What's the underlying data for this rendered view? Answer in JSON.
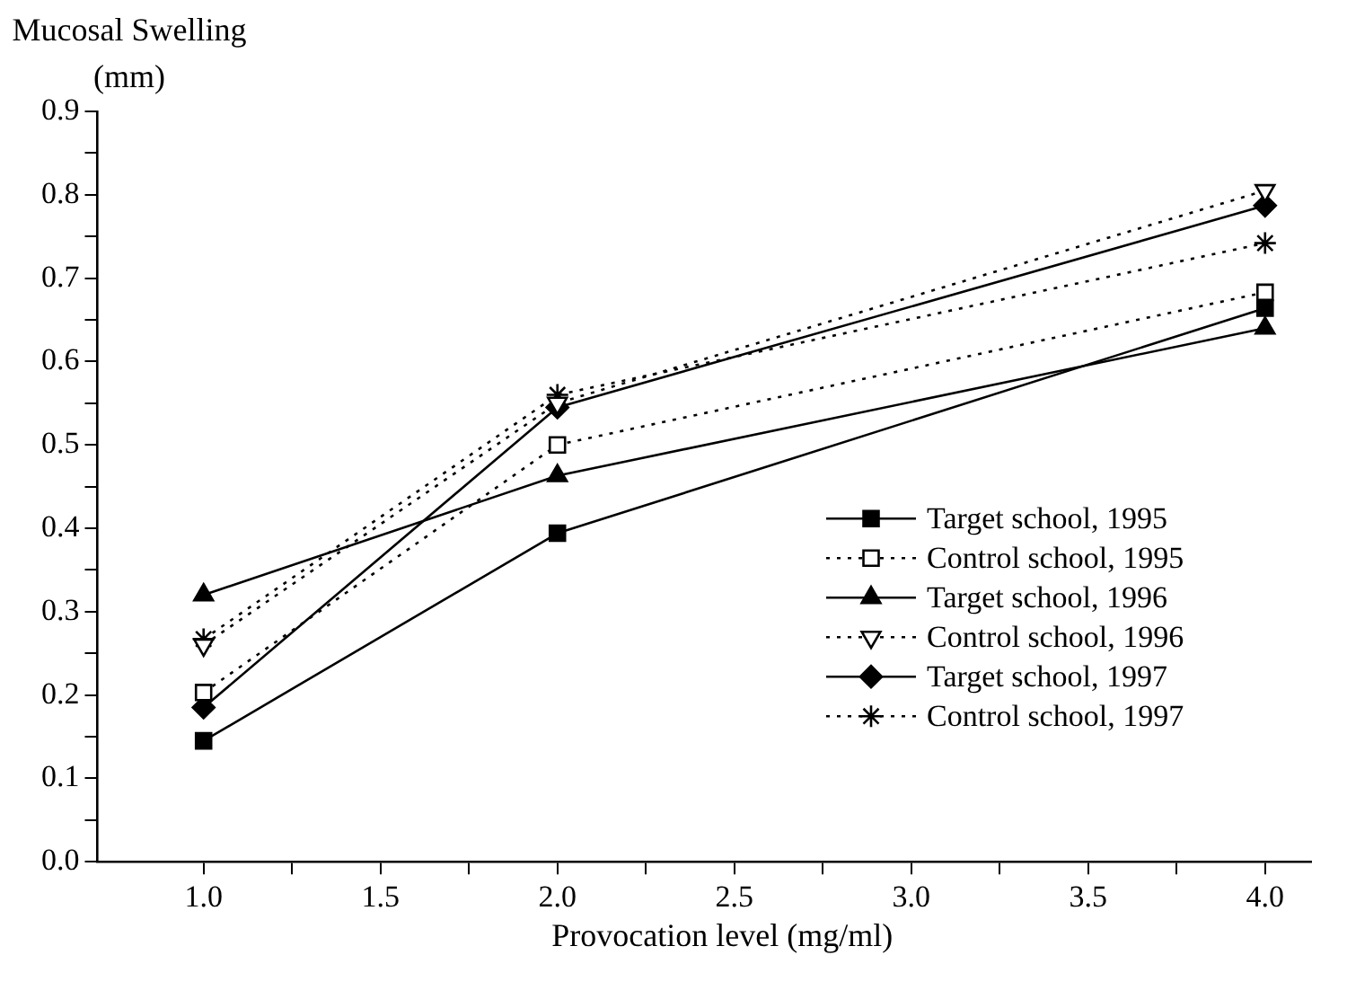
{
  "chart_data": {
    "type": "line",
    "ylabel": "Mucosal Swelling\n(mm)",
    "xlabel": "Provocation level (mg/ml)",
    "x": [
      1.0,
      2.0,
      4.0
    ],
    "xlim": [
      0.7,
      4.13
    ],
    "xticks": [
      {
        "value": 1,
        "label": "1.0"
      },
      {
        "value": 1.25,
        "label": null
      },
      1.5,
      {
        "value": 1.75,
        "label": null
      },
      {
        "value": 2,
        "label": "2.0"
      },
      {
        "value": 2.25,
        "label": null
      },
      2.5,
      {
        "value": 2.75,
        "label": null
      },
      {
        "value": 3,
        "label": "3.0"
      },
      {
        "value": 3.25,
        "label": null
      },
      3.5,
      {
        "value": 3.75,
        "label": null
      },
      {
        "value": 4,
        "label": "4.0"
      }
    ],
    "ylim": [
      0,
      0.9
    ],
    "yticks": [
      {
        "value": 0,
        "label": "0.0"
      },
      {
        "value": 0.05,
        "label": null
      },
      0.1,
      {
        "value": 0.15,
        "label": null
      },
      0.2,
      {
        "value": 0.25,
        "label": null
      },
      0.3,
      {
        "value": 0.35,
        "label": null
      },
      0.4,
      {
        "value": 0.45,
        "label": null
      },
      0.5,
      {
        "value": 0.55,
        "label": null
      },
      0.6,
      {
        "value": 0.65,
        "label": null
      },
      0.7,
      {
        "value": 0.75,
        "label": null
      },
      0.8,
      {
        "value": 0.85,
        "label": null
      },
      0.9
    ],
    "grid": false,
    "legend": "right",
    "series": [
      {
        "name": "Target school, 1995",
        "color": "#000000",
        "marker": "square",
        "line_style": "solid",
        "values": [
          0.145,
          0.394,
          0.664
        ]
      },
      {
        "name": "Control school, 1995",
        "color": "#000000",
        "marker": "square",
        "line_style": "dotted",
        "values": [
          0.203,
          0.5,
          0.683
        ]
      },
      {
        "name": "Target school, 1996",
        "color": "#000000",
        "marker": "triangle",
        "line_style": "solid",
        "values": [
          0.32,
          0.463,
          0.64
        ]
      },
      {
        "name": "Control school, 1996",
        "color": "#000000",
        "marker": "triangle",
        "line_style": "dotted",
        "values": [
          0.26,
          0.55,
          0.805
        ]
      },
      {
        "name": "Target school, 1997",
        "color": "#000000",
        "marker": "diamond",
        "line_style": "solid",
        "values": [
          0.185,
          0.545,
          0.787
        ]
      },
      {
        "name": "Control school, 1997",
        "color": "#000000",
        "marker": "cross",
        "line_style": "dotted",
        "values": [
          0.267,
          0.56,
          0.742
        ]
      }
    ]
  }
}
